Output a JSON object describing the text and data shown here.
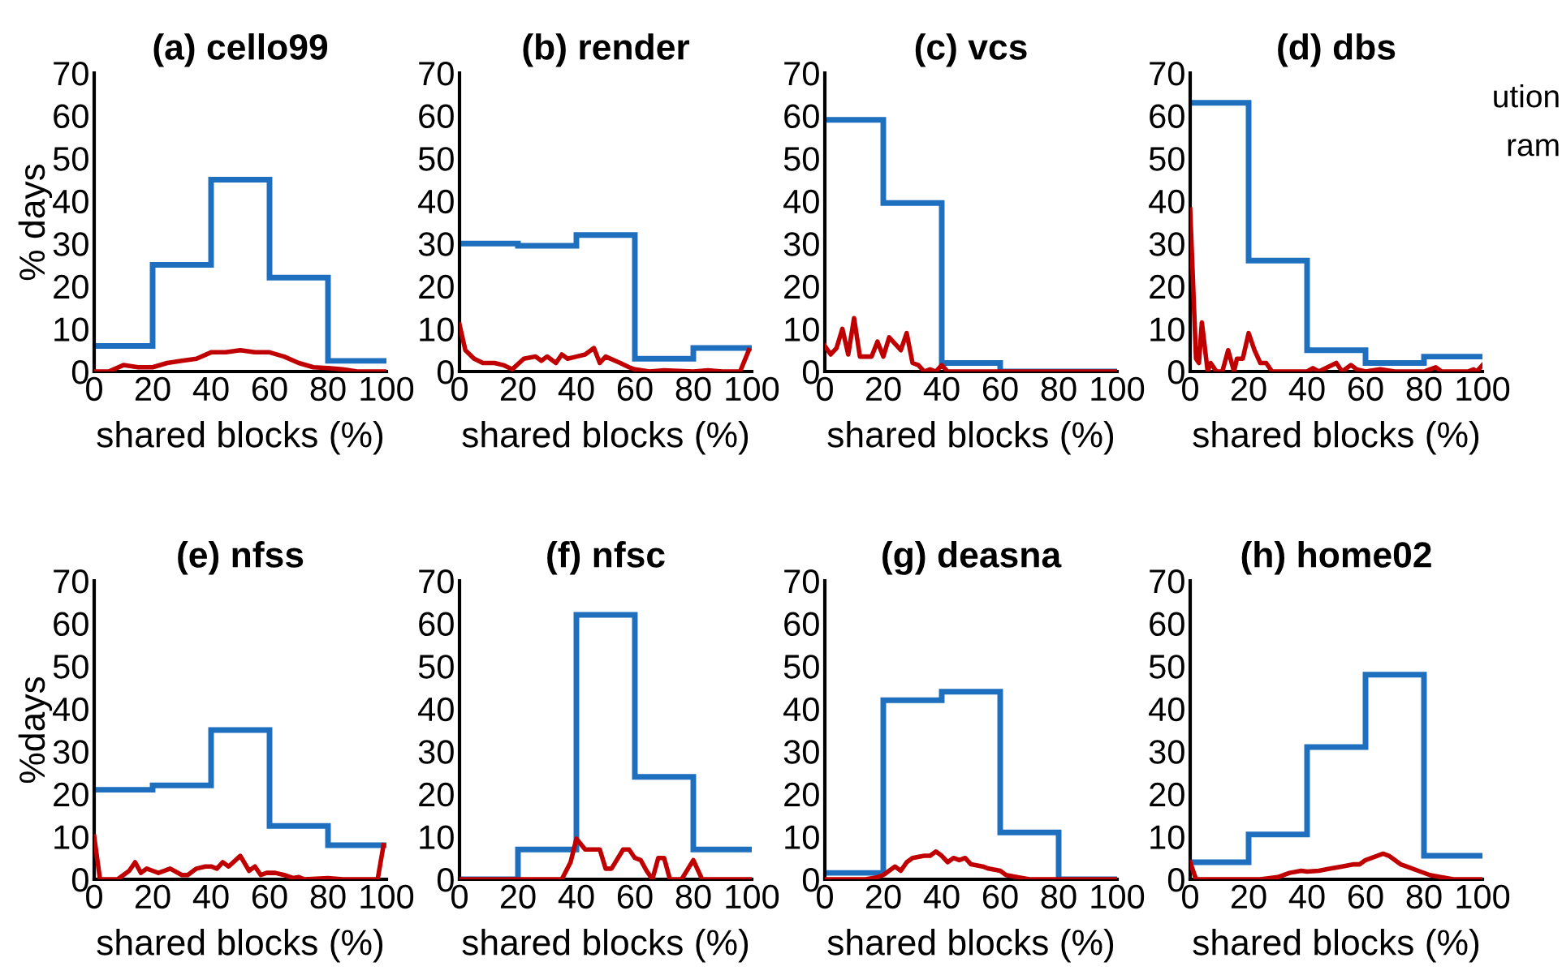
{
  "chart_data": [
    {
      "type": "histogram",
      "title": "(a) cello99",
      "xlabel": "shared blocks (%)",
      "ylabel": "% days",
      "bins": [
        0,
        20,
        40,
        60,
        80,
        100
      ],
      "values": [
        6,
        25,
        45,
        22,
        2.5
      ],
      "color": "#1f6fbf",
      "xlim": [
        0,
        100
      ],
      "ylim": [
        0,
        70
      ],
      "xticks": [
        0,
        20,
        40,
        60,
        80,
        100
      ],
      "yticks": [
        0,
        10,
        20,
        30,
        40,
        50,
        60,
        70
      ],
      "series": [
        {
          "type": "line",
          "color": "#c00000",
          "x": [
            0,
            5,
            10,
            15,
            20,
            25,
            30,
            35,
            40,
            45,
            50,
            55,
            60,
            65,
            70,
            75,
            80,
            85,
            90,
            100
          ],
          "values": [
            0,
            0,
            1.5,
            1,
            1,
            2,
            2.5,
            3,
            4.5,
            4.5,
            5,
            4.5,
            4.5,
            3.5,
            2,
            1,
            0.8,
            0.5,
            0,
            0
          ]
        }
      ]
    },
    {
      "type": "histogram",
      "title": "(b) render",
      "xlabel": "shared blocks (%)",
      "bins": [
        0,
        20,
        40,
        60,
        80,
        100
      ],
      "values": [
        30,
        29.5,
        32,
        3,
        5.5
      ],
      "color": "#1f6fbf",
      "xlim": [
        0,
        100
      ],
      "ylim": [
        0,
        70
      ],
      "xticks": [
        0,
        20,
        40,
        60,
        80,
        100
      ],
      "yticks": [
        0,
        10,
        20,
        30,
        40,
        50,
        60,
        70
      ],
      "series": [
        {
          "type": "line",
          "color": "#c00000",
          "x": [
            0,
            2,
            5,
            8,
            12,
            15,
            18,
            22,
            26,
            28,
            30,
            33,
            35,
            37,
            40,
            43,
            46,
            48,
            50,
            55,
            58,
            60,
            65,
            70,
            80,
            85,
            90,
            96,
            99
          ],
          "values": [
            11,
            5,
            3,
            2,
            2,
            1.5,
            0.5,
            3,
            3.5,
            2.5,
            3.5,
            2,
            4,
            3,
            3.5,
            4,
            5.5,
            2,
            3.5,
            2,
            1,
            0.5,
            0,
            0.3,
            0,
            0.3,
            0,
            0,
            5
          ]
        }
      ]
    },
    {
      "type": "histogram",
      "title": "(c) vcs",
      "xlabel": "shared blocks (%)",
      "bins": [
        0,
        20,
        40,
        60,
        80,
        100
      ],
      "values": [
        59,
        39.5,
        2,
        0,
        0
      ],
      "color": "#1f6fbf",
      "xlim": [
        0,
        100
      ],
      "ylim": [
        0,
        70
      ],
      "xticks": [
        0,
        20,
        40,
        60,
        80,
        100
      ],
      "yticks": [
        0,
        10,
        20,
        30,
        40,
        50,
        60,
        70
      ],
      "series": [
        {
          "type": "line",
          "color": "#c00000",
          "x": [
            0,
            2,
            4,
            6,
            8,
            10,
            12,
            16,
            18,
            20,
            22,
            26,
            28,
            30,
            32,
            34,
            36,
            38,
            40,
            42,
            50,
            100
          ],
          "values": [
            6,
            4,
            5.5,
            10,
            4,
            12.5,
            3.5,
            3.5,
            7,
            3.5,
            8,
            5,
            9,
            2,
            1.5,
            0,
            0.5,
            0,
            1.5,
            0,
            0,
            0
          ]
        }
      ]
    },
    {
      "type": "histogram",
      "title": "(d) dbs",
      "xlabel": "shared blocks (%)",
      "bins": [
        0,
        20,
        40,
        60,
        80,
        100
      ],
      "values": [
        63,
        26,
        5,
        2,
        3.5
      ],
      "color": "#1f6fbf",
      "xlim": [
        0,
        100
      ],
      "ylim": [
        0,
        70
      ],
      "xticks": [
        0,
        20,
        40,
        60,
        80,
        100
      ],
      "yticks": [
        0,
        10,
        20,
        30,
        40,
        50,
        60,
        70
      ],
      "annotations": [
        "ution",
        "ram"
      ],
      "series": [
        {
          "type": "line",
          "color": "#c00000",
          "x": [
            0,
            2,
            3,
            4,
            6,
            7,
            9,
            11,
            13,
            15,
            16,
            18,
            20,
            22,
            24,
            26,
            28,
            40,
            42,
            44,
            50,
            52,
            55,
            57,
            60,
            65,
            70,
            80,
            84,
            86,
            95,
            97,
            98,
            100
          ],
          "values": [
            38,
            3,
            2,
            11.5,
            0,
            2,
            0,
            0,
            5,
            0,
            3,
            3,
            9,
            5,
            2,
            2,
            0,
            0,
            0.8,
            0,
            2,
            0,
            1.5,
            0.5,
            0,
            0.5,
            0,
            0,
            1,
            0,
            0,
            0.5,
            0,
            1.5
          ]
        }
      ]
    },
    {
      "type": "histogram",
      "title": "(e) nfss",
      "xlabel": "shared blocks (%)",
      "ylabel": "%days",
      "bins": [
        0,
        20,
        40,
        60,
        80,
        100
      ],
      "values": [
        21,
        22,
        35,
        12.5,
        8
      ],
      "color": "#1f6fbf",
      "xlim": [
        0,
        100
      ],
      "ylim": [
        0,
        70
      ],
      "xticks": [
        0,
        20,
        40,
        60,
        80,
        100
      ],
      "yticks": [
        0,
        10,
        20,
        30,
        40,
        50,
        60,
        70
      ],
      "series": [
        {
          "type": "line",
          "color": "#c00000",
          "x": [
            0,
            2,
            8,
            12,
            14,
            16,
            18,
            20,
            22,
            26,
            30,
            32,
            35,
            38,
            40,
            42,
            44,
            46,
            50,
            53,
            55,
            57,
            59,
            62,
            65,
            68,
            70,
            72,
            80,
            85,
            97,
            99
          ],
          "values": [
            10,
            0,
            0,
            2,
            4,
            1.5,
            2.5,
            2,
            1.5,
            2.5,
            1,
            1,
            2.5,
            3,
            3,
            2.5,
            4,
            3,
            5.5,
            2,
            3,
            1,
            1.5,
            1.5,
            1,
            0.3,
            0.5,
            0,
            0.3,
            0,
            0,
            8
          ]
        }
      ]
    },
    {
      "type": "histogram",
      "title": "(f) nfsc",
      "xlabel": "shared blocks (%)",
      "bins": [
        0,
        20,
        40,
        60,
        80,
        100
      ],
      "values": [
        0,
        7,
        62,
        24,
        7
      ],
      "color": "#1f6fbf",
      "xlim": [
        0,
        100
      ],
      "ylim": [
        0,
        70
      ],
      "xticks": [
        0,
        20,
        40,
        60,
        80,
        100
      ],
      "yticks": [
        0,
        10,
        20,
        30,
        40,
        50,
        60,
        70
      ],
      "series": [
        {
          "type": "line",
          "color": "#c00000",
          "x": [
            0,
            35,
            38,
            40,
            43,
            48,
            50,
            52,
            56,
            58,
            60,
            62,
            64,
            66,
            68,
            70,
            72,
            76,
            80,
            83,
            100
          ],
          "values": [
            0,
            0,
            4,
            9.5,
            7,
            7,
            2.5,
            2.5,
            7,
            7,
            5,
            4.5,
            2,
            0,
            5,
            5,
            0,
            0,
            4.5,
            0,
            0
          ]
        }
      ]
    },
    {
      "type": "histogram",
      "title": "(g) deasna",
      "xlabel": "shared blocks (%)",
      "bins": [
        0,
        20,
        40,
        60,
        80,
        100
      ],
      "values": [
        1.5,
        42,
        44,
        11,
        0
      ],
      "color": "#1f6fbf",
      "xlim": [
        0,
        100
      ],
      "ylim": [
        0,
        70
      ],
      "xticks": [
        0,
        20,
        40,
        60,
        80,
        100
      ],
      "yticks": [
        0,
        10,
        20,
        30,
        40,
        50,
        60,
        70
      ],
      "series": [
        {
          "type": "line",
          "color": "#c00000",
          "x": [
            0,
            14,
            18,
            20,
            24,
            26,
            28,
            30,
            34,
            36,
            38,
            40,
            42,
            44,
            46,
            48,
            50,
            54,
            56,
            60,
            62,
            66,
            70,
            80,
            100
          ],
          "values": [
            0,
            0,
            0.5,
            1,
            3,
            2,
            4,
            5,
            5.5,
            5.5,
            6.5,
            5.5,
            4,
            5,
            4.5,
            5,
            3.5,
            3,
            2.5,
            2,
            1,
            0.5,
            0,
            0,
            0
          ]
        }
      ]
    },
    {
      "type": "histogram",
      "title": "(h) home02",
      "xlabel": "shared blocks (%)",
      "bins": [
        0,
        20,
        40,
        60,
        80,
        100
      ],
      "values": [
        4,
        10.5,
        31,
        48,
        5.5
      ],
      "color": "#1f6fbf",
      "xlim": [
        0,
        100
      ],
      "ylim": [
        0,
        70
      ],
      "xticks": [
        0,
        20,
        40,
        60,
        80,
        100
      ],
      "yticks": [
        0,
        10,
        20,
        30,
        40,
        50,
        60,
        70
      ],
      "series": [
        {
          "type": "line",
          "color": "#c00000",
          "x": [
            0,
            2,
            10,
            20,
            24,
            30,
            34,
            38,
            40,
            44,
            48,
            52,
            56,
            58,
            60,
            64,
            66,
            68,
            70,
            72,
            74,
            78,
            82,
            86,
            90,
            100
          ],
          "values": [
            4,
            0,
            0,
            0,
            0,
            0.5,
            1.5,
            2,
            1.8,
            2,
            2.5,
            3,
            3.5,
            3.5,
            4.5,
            5.5,
            6,
            5.5,
            4.5,
            3.5,
            3,
            2,
            1,
            0.5,
            0,
            0
          ]
        }
      ]
    }
  ]
}
